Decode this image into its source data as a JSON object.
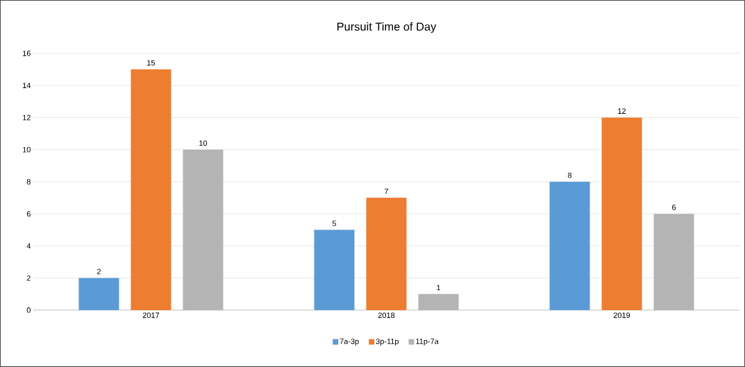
{
  "chart_data": {
    "type": "bar",
    "title": "Pursuit Time of Day",
    "categories": [
      "2017",
      "2018",
      "2019"
    ],
    "series": [
      {
        "name": "7a-3p",
        "color": "#5b9bd5",
        "values": [
          2,
          5,
          8
        ]
      },
      {
        "name": "3p-11p",
        "color": "#ed7d31",
        "values": [
          15,
          7,
          12
        ]
      },
      {
        "name": "11p-7a",
        "color": "#b4b4b4",
        "values": [
          10,
          1,
          6
        ]
      }
    ],
    "ylim": [
      0,
      16
    ],
    "yticks": [
      0,
      2,
      4,
      6,
      8,
      10,
      12,
      14,
      16
    ],
    "grid": "y",
    "legend": "bottom",
    "data_labels": true
  }
}
